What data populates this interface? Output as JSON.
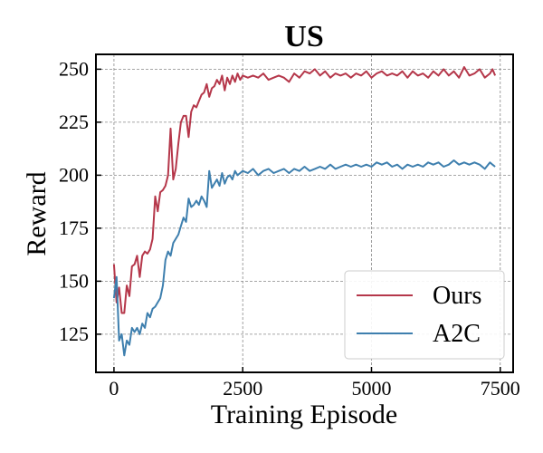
{
  "chart_data": {
    "type": "line",
    "title": "US",
    "xlabel": "Training Episode",
    "ylabel": "Reward",
    "xlim": [
      -350,
      7750
    ],
    "ylim": [
      107,
      257
    ],
    "xticks": [
      0,
      2500,
      5000,
      7500
    ],
    "yticks": [
      125,
      150,
      175,
      200,
      225,
      250
    ],
    "grid": true,
    "legend_position": "lower-right",
    "series": [
      {
        "name": "Ours",
        "color": "#b5374a",
        "points": [
          [
            0,
            158
          ],
          [
            50,
            140
          ],
          [
            100,
            147
          ],
          [
            150,
            135
          ],
          [
            200,
            135
          ],
          [
            250,
            148
          ],
          [
            300,
            143
          ],
          [
            350,
            157
          ],
          [
            400,
            158
          ],
          [
            450,
            162
          ],
          [
            500,
            152
          ],
          [
            550,
            162
          ],
          [
            600,
            164
          ],
          [
            650,
            163
          ],
          [
            700,
            165
          ],
          [
            750,
            170
          ],
          [
            800,
            190
          ],
          [
            850,
            183
          ],
          [
            900,
            192
          ],
          [
            950,
            193
          ],
          [
            1000,
            195
          ],
          [
            1050,
            200
          ],
          [
            1100,
            222
          ],
          [
            1150,
            198
          ],
          [
            1200,
            203
          ],
          [
            1250,
            215
          ],
          [
            1300,
            225
          ],
          [
            1350,
            228
          ],
          [
            1400,
            228
          ],
          [
            1450,
            218
          ],
          [
            1500,
            230
          ],
          [
            1550,
            233
          ],
          [
            1600,
            232
          ],
          [
            1650,
            235
          ],
          [
            1700,
            238
          ],
          [
            1750,
            239
          ],
          [
            1800,
            243
          ],
          [
            1850,
            237
          ],
          [
            1900,
            241
          ],
          [
            1950,
            242
          ],
          [
            2000,
            245
          ],
          [
            2050,
            243
          ],
          [
            2100,
            247
          ],
          [
            2150,
            240
          ],
          [
            2200,
            246
          ],
          [
            2250,
            243
          ],
          [
            2300,
            247
          ],
          [
            2350,
            244
          ],
          [
            2400,
            248
          ],
          [
            2450,
            245
          ],
          [
            2500,
            247
          ],
          [
            2600,
            246
          ],
          [
            2700,
            247
          ],
          [
            2800,
            246
          ],
          [
            2900,
            248
          ],
          [
            3000,
            245
          ],
          [
            3100,
            246
          ],
          [
            3200,
            247
          ],
          [
            3300,
            246
          ],
          [
            3400,
            244
          ],
          [
            3500,
            248
          ],
          [
            3600,
            246
          ],
          [
            3700,
            249
          ],
          [
            3800,
            248
          ],
          [
            3900,
            250
          ],
          [
            4000,
            247
          ],
          [
            4100,
            249
          ],
          [
            4200,
            246
          ],
          [
            4300,
            248
          ],
          [
            4400,
            247
          ],
          [
            4500,
            248
          ],
          [
            4600,
            246
          ],
          [
            4700,
            248
          ],
          [
            4800,
            247
          ],
          [
            4900,
            249
          ],
          [
            5000,
            246
          ],
          [
            5100,
            248
          ],
          [
            5200,
            249
          ],
          [
            5300,
            247
          ],
          [
            5400,
            248
          ],
          [
            5500,
            247
          ],
          [
            5600,
            249
          ],
          [
            5700,
            246
          ],
          [
            5800,
            249
          ],
          [
            5900,
            247
          ],
          [
            6000,
            248
          ],
          [
            6100,
            246
          ],
          [
            6200,
            249
          ],
          [
            6300,
            247
          ],
          [
            6400,
            250
          ],
          [
            6500,
            247
          ],
          [
            6600,
            249
          ],
          [
            6700,
            246
          ],
          [
            6800,
            251
          ],
          [
            6900,
            247
          ],
          [
            7000,
            248
          ],
          [
            7100,
            250
          ],
          [
            7200,
            246
          ],
          [
            7300,
            248
          ],
          [
            7350,
            250
          ],
          [
            7400,
            247
          ]
        ]
      },
      {
        "name": "A2C",
        "color": "#3e7fae",
        "points": [
          [
            0,
            142
          ],
          [
            50,
            152
          ],
          [
            100,
            122
          ],
          [
            150,
            125
          ],
          [
            200,
            115
          ],
          [
            250,
            122
          ],
          [
            300,
            120
          ],
          [
            350,
            128
          ],
          [
            400,
            126
          ],
          [
            450,
            128
          ],
          [
            500,
            125
          ],
          [
            550,
            130
          ],
          [
            600,
            128
          ],
          [
            650,
            135
          ],
          [
            700,
            133
          ],
          [
            750,
            137
          ],
          [
            800,
            138
          ],
          [
            850,
            140
          ],
          [
            900,
            142
          ],
          [
            950,
            148
          ],
          [
            1000,
            160
          ],
          [
            1050,
            164
          ],
          [
            1100,
            162
          ],
          [
            1150,
            168
          ],
          [
            1200,
            170
          ],
          [
            1250,
            172
          ],
          [
            1300,
            176
          ],
          [
            1350,
            180
          ],
          [
            1400,
            178
          ],
          [
            1450,
            189
          ],
          [
            1500,
            185
          ],
          [
            1550,
            186
          ],
          [
            1600,
            188
          ],
          [
            1650,
            186
          ],
          [
            1700,
            190
          ],
          [
            1750,
            188
          ],
          [
            1800,
            185
          ],
          [
            1850,
            202
          ],
          [
            1900,
            194
          ],
          [
            1950,
            196
          ],
          [
            2000,
            198
          ],
          [
            2050,
            195
          ],
          [
            2100,
            201
          ],
          [
            2150,
            196
          ],
          [
            2200,
            199
          ],
          [
            2250,
            200
          ],
          [
            2300,
            198
          ],
          [
            2350,
            202
          ],
          [
            2400,
            200
          ],
          [
            2450,
            201
          ],
          [
            2500,
            202
          ],
          [
            2600,
            201
          ],
          [
            2700,
            203
          ],
          [
            2800,
            200
          ],
          [
            2900,
            202
          ],
          [
            3000,
            203
          ],
          [
            3100,
            201
          ],
          [
            3200,
            202
          ],
          [
            3300,
            203
          ],
          [
            3400,
            201
          ],
          [
            3500,
            203
          ],
          [
            3600,
            202
          ],
          [
            3700,
            204
          ],
          [
            3800,
            202
          ],
          [
            3900,
            203
          ],
          [
            4000,
            204
          ],
          [
            4100,
            203
          ],
          [
            4200,
            205
          ],
          [
            4300,
            203
          ],
          [
            4400,
            204
          ],
          [
            4500,
            205
          ],
          [
            4600,
            204
          ],
          [
            4700,
            205
          ],
          [
            4800,
            204
          ],
          [
            4900,
            205
          ],
          [
            5000,
            204
          ],
          [
            5100,
            206
          ],
          [
            5200,
            205
          ],
          [
            5300,
            206
          ],
          [
            5400,
            204
          ],
          [
            5500,
            205
          ],
          [
            5600,
            203
          ],
          [
            5700,
            205
          ],
          [
            5800,
            204
          ],
          [
            5900,
            205
          ],
          [
            6000,
            204
          ],
          [
            6100,
            206
          ],
          [
            6200,
            205
          ],
          [
            6300,
            206
          ],
          [
            6400,
            204
          ],
          [
            6500,
            205
          ],
          [
            6600,
            207
          ],
          [
            6700,
            205
          ],
          [
            6800,
            206
          ],
          [
            6900,
            205
          ],
          [
            7000,
            206
          ],
          [
            7100,
            205
          ],
          [
            7200,
            203
          ],
          [
            7300,
            206
          ],
          [
            7350,
            205
          ],
          [
            7400,
            204
          ]
        ]
      }
    ]
  }
}
